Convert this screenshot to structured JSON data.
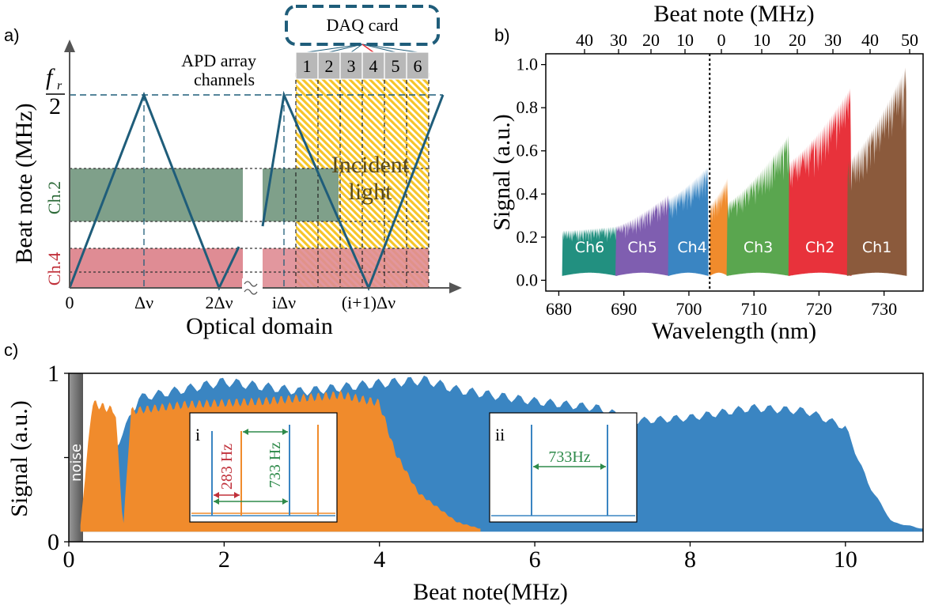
{
  "colors": {
    "navy": "#1f5d7a",
    "blue": "#3a85c2",
    "orange": "#f08b2c",
    "green": "#5aa64f",
    "red": "#e8323b",
    "brown": "#8b5a3c",
    "purple": "#7f5eb0",
    "teal": "#229080",
    "ch2_band": "#7fa08a",
    "ch4_band": "#df8c94",
    "hatch": "#f5c52a"
  },
  "panel_a": {
    "label": "a)",
    "daq_label": "DAQ card",
    "apd_label_line1": "APD array",
    "apd_label_line2": "channels",
    "channels": [
      "1",
      "2",
      "3",
      "4",
      "5",
      "6"
    ],
    "y_title": "Beat note (MHz)",
    "x_title": "Optical domain",
    "fr_top": "f",
    "fr_sub": "r",
    "fr_den": "2",
    "ch2_label": "Ch.2",
    "ch4_label": "Ch.4",
    "incident_line1": "Incident",
    "incident_line2": "light",
    "x_ticks": [
      "0",
      "Δν",
      "2Δν",
      "iΔν",
      "(i+1)Δν"
    ]
  },
  "panel_b": {
    "label": "b)",
    "chart_data": {
      "type": "area",
      "xlabel": "Wavelength (nm)",
      "ylabel": "Signal (a.u.)",
      "top_xlabel": "Beat note (MHz)",
      "xlim": [
        678,
        736
      ],
      "ylim": [
        -0.05,
        1.05
      ],
      "x_ticks": [
        680,
        690,
        700,
        710,
        720,
        730
      ],
      "y_ticks": [
        "0.0",
        "0.2",
        "0.4",
        "0.6",
        "0.8",
        "1.0"
      ],
      "top_ticks": [
        "40",
        "30",
        "20",
        "10",
        "0",
        "0",
        "10",
        "20",
        "30",
        "40",
        "50"
      ],
      "center_line_x": 703.2,
      "series": [
        {
          "name": "Ch6",
          "x_start": 680.5,
          "x_end": 689.0,
          "peak": 0.25,
          "low": 0.23,
          "color": "#229080"
        },
        {
          "name": "Ch5",
          "x_start": 688.7,
          "x_end": 697.0,
          "peak": 0.4,
          "low": 0.25,
          "color": "#7f5eb0"
        },
        {
          "name": "Ch4",
          "x_start": 696.8,
          "x_end": 703.0,
          "peak": 0.53,
          "low": 0.38,
          "color": "#3a85c2"
        },
        {
          "name": "Ch4",
          "x_start": 703.2,
          "x_end": 706.0,
          "peak": 0.48,
          "low": 0.35,
          "color": "#f08b2c"
        },
        {
          "name": "Ch3",
          "x_start": 705.8,
          "x_end": 715.5,
          "peak": 0.68,
          "low": 0.36,
          "color": "#5aa64f"
        },
        {
          "name": "Ch2",
          "x_start": 715.3,
          "x_end": 725.0,
          "peak": 0.9,
          "low": 0.55,
          "color": "#e8323b"
        },
        {
          "name": "Ch1",
          "x_start": 724.3,
          "x_end": 733.5,
          "peak": 1.0,
          "low": 0.55,
          "color": "#8b5a3c"
        }
      ]
    }
  },
  "panel_c": {
    "label": "c)",
    "noise_label": "noise",
    "chart_data": {
      "type": "area",
      "xlabel": "Beat note(MHz)",
      "ylabel": "Signal (a.u.)",
      "xlim": [
        0,
        11
      ],
      "ylim": [
        0,
        1
      ],
      "x_ticks": [
        "0",
        "2",
        "4",
        "6",
        "8",
        "10"
      ],
      "y_ticks": [
        "0",
        "1"
      ],
      "series": [
        {
          "name": "blue",
          "color": "#3a85c2",
          "x": [
            0.15,
            0.9,
            2.0,
            3.0,
            4.0,
            4.6,
            5.0,
            6.0,
            6.8,
            7.3,
            8.0,
            8.8,
            9.5,
            10.0,
            10.3,
            10.6,
            11.0
          ],
          "y": [
            0.1,
            0.88,
            0.98,
            0.92,
            0.97,
            0.99,
            0.93,
            0.86,
            0.82,
            0.74,
            0.76,
            0.82,
            0.8,
            0.7,
            0.35,
            0.12,
            0.08
          ]
        },
        {
          "name": "orange",
          "color": "#f08b2c",
          "x": [
            0.15,
            0.3,
            0.6,
            0.7,
            0.8,
            1.5,
            2.5,
            3.5,
            4.0,
            4.2,
            4.5,
            5.0,
            5.3
          ],
          "y": [
            0.1,
            0.85,
            0.8,
            0.08,
            0.8,
            0.84,
            0.86,
            0.9,
            0.85,
            0.55,
            0.3,
            0.12,
            0.08
          ]
        }
      ]
    },
    "inset_i": {
      "label": "i",
      "label_283": "283 Hz",
      "label_733": "733 Hz"
    },
    "inset_ii": {
      "label": "ii",
      "label_733": "733Hz"
    }
  }
}
